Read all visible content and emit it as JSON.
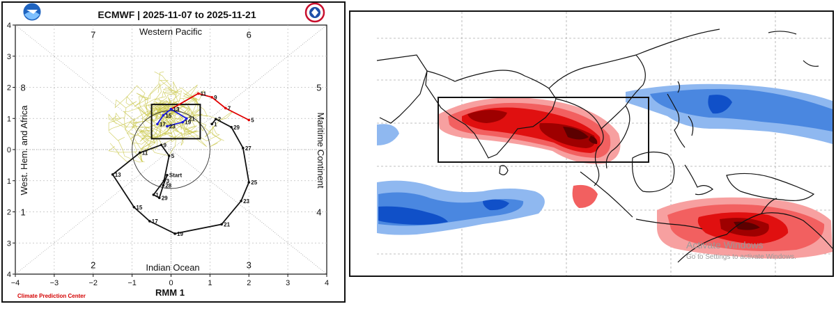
{
  "chart_data": [
    {
      "type": "line",
      "title": "ECMWF | 2025-11-07 to 2025-11-21",
      "xlabel": "RMM 1",
      "ylabel": "",
      "xlim": [
        -4,
        4
      ],
      "ylim": [
        -4,
        4
      ],
      "x_ticks": [
        "−4",
        "−3",
        "−2",
        "−1",
        "0",
        "1",
        "2",
        "3",
        "4"
      ],
      "y_ticks": [
        "4",
        "3",
        "2",
        "1",
        "0",
        "1",
        "2",
        "3",
        "4"
      ],
      "grid": true,
      "region_labels": {
        "top": "Western Pacific",
        "bottom": "Indian Ocean",
        "left": "West. Hem. and Africa",
        "right": "Maritime Continent"
      },
      "phase_numbers": [
        {
          "label": "1",
          "x": -3.8,
          "y": -2.0
        },
        {
          "label": "2",
          "x": -2.0,
          "y": -3.7
        },
        {
          "label": "3",
          "x": 2.0,
          "y": -3.7
        },
        {
          "label": "4",
          "x": 3.8,
          "y": -2.0
        },
        {
          "label": "5",
          "x": 3.8,
          "y": 2.0
        },
        {
          "label": "6",
          "x": 2.0,
          "y": 3.7
        },
        {
          "label": "7",
          "x": -2.0,
          "y": 3.7
        },
        {
          "label": "8",
          "x": -3.8,
          "y": 2.0
        }
      ],
      "start_label": "Start",
      "credit": "Climate Prediction Center",
      "series": [
        {
          "color": "#111111",
          "points": [
            {
              "x": 1.05,
              "y": 0.82,
              "label": "1"
            },
            {
              "x": 1.15,
              "y": 0.98,
              "label": "2"
            },
            {
              "x": 1.55,
              "y": 0.72,
              "label": "29"
            },
            {
              "x": 1.85,
              "y": 0.05,
              "label": "27"
            },
            {
              "x": 2.0,
              "y": -1.05,
              "label": "25"
            },
            {
              "x": 1.8,
              "y": -1.65,
              "label": "23"
            },
            {
              "x": 1.3,
              "y": -2.4,
              "label": "21"
            },
            {
              "x": 0.1,
              "y": -2.7,
              "label": "19"
            },
            {
              "x": -0.55,
              "y": -2.3,
              "label": "17"
            },
            {
              "x": -0.95,
              "y": -1.85,
              "label": "15"
            },
            {
              "x": -1.5,
              "y": -0.8,
              "label": "13"
            },
            {
              "x": -0.8,
              "y": -0.1,
              "label": "11"
            },
            {
              "x": -0.25,
              "y": 0.15,
              "label": "9"
            },
            {
              "x": -0.05,
              "y": -0.2,
              "label": "5"
            },
            {
              "x": -0.18,
              "y": -1.0,
              "label": "3"
            },
            {
              "x": -0.45,
              "y": -1.45,
              "label": "1"
            },
            {
              "x": -0.3,
              "y": -1.55,
              "label": "29"
            },
            {
              "x": -0.2,
              "y": -1.15,
              "label": "28"
            },
            {
              "x": -0.1,
              "y": -0.82,
              "label": "Start"
            }
          ]
        },
        {
          "color": "#e00000",
          "points": [
            {
              "x": 0.0,
              "y": 1.3,
              "label": "13"
            },
            {
              "x": 0.7,
              "y": 1.8,
              "label": "11"
            },
            {
              "x": 1.05,
              "y": 1.68,
              "label": "9"
            },
            {
              "x": 1.4,
              "y": 1.33,
              "label": "7"
            },
            {
              "x": 2.0,
              "y": 0.95,
              "label": "5"
            }
          ]
        },
        {
          "color": "#1a1adf",
          "points": [
            {
              "x": -0.35,
              "y": 0.82,
              "label": "17"
            },
            {
              "x": -0.2,
              "y": 1.1,
              "label": "15"
            },
            {
              "x": 0.0,
              "y": 1.3,
              "label": "13"
            },
            {
              "x": 0.4,
              "y": 1.0,
              "label": "21"
            },
            {
              "x": 0.3,
              "y": 0.88,
              "label": "19"
            },
            {
              "x": -0.1,
              "y": 0.75,
              "label": "23"
            }
          ]
        }
      ]
    },
    {
      "type": "heatmap",
      "title": "",
      "xlabel": "",
      "ylabel": "",
      "grid": true,
      "watermark": {
        "line1": "Activate Windows",
        "line2": "Go to Settings to activate Windows."
      }
    }
  ]
}
